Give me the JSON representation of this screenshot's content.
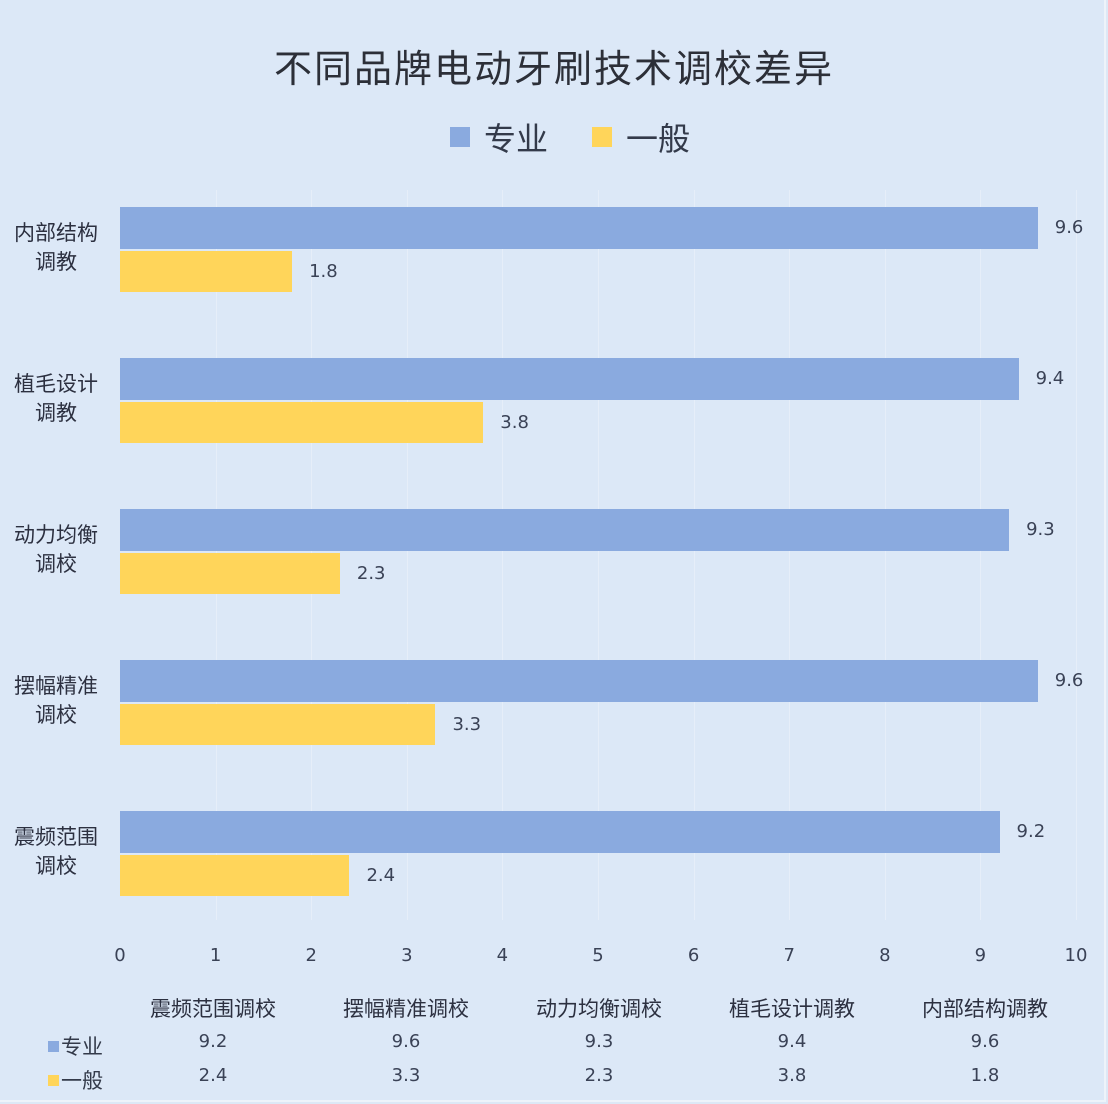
{
  "chart_data": {
    "type": "bar",
    "orientation": "horizontal",
    "title": "不同品牌电动牙刷技术调校差异",
    "categories": [
      "内部结构调教",
      "植毛设计调教",
      "动力均衡调校",
      "摆幅精准调校",
      "震频范围调校"
    ],
    "category_labels_wrapped": [
      [
        "内部结构",
        "调教"
      ],
      [
        "植毛设计",
        "调教"
      ],
      [
        "动力均衡",
        "调校"
      ],
      [
        "摆幅精准",
        "调校"
      ],
      [
        "震频范围",
        "调校"
      ]
    ],
    "series": [
      {
        "name": "专业",
        "color": "#8aaadf",
        "values": [
          9.6,
          9.4,
          9.3,
          9.6,
          9.2
        ]
      },
      {
        "name": "一般",
        "color": "#ffd55a",
        "values": [
          1.8,
          3.8,
          2.3,
          3.3,
          2.4
        ]
      }
    ],
    "xlabel": "",
    "ylabel": "",
    "xlim": [
      0,
      10
    ],
    "x_ticks": [
      "0",
      "1",
      "2",
      "3",
      "4",
      "5",
      "6",
      "7",
      "8",
      "9",
      "10"
    ],
    "grid": "vertical faint",
    "legend_position": "top",
    "data_labels": true,
    "data_table": {
      "columns": [
        "震频范围调校",
        "摆幅精准调校",
        "动力均衡调校",
        "植毛设计调教",
        "内部结构调教"
      ],
      "rows": [
        {
          "name": "专业",
          "values": [
            "9.2",
            "9.6",
            "9.3",
            "9.4",
            "9.6"
          ]
        },
        {
          "name": "一般",
          "values": [
            "2.4",
            "3.3",
            "2.3",
            "3.8",
            "1.8"
          ]
        }
      ]
    }
  }
}
